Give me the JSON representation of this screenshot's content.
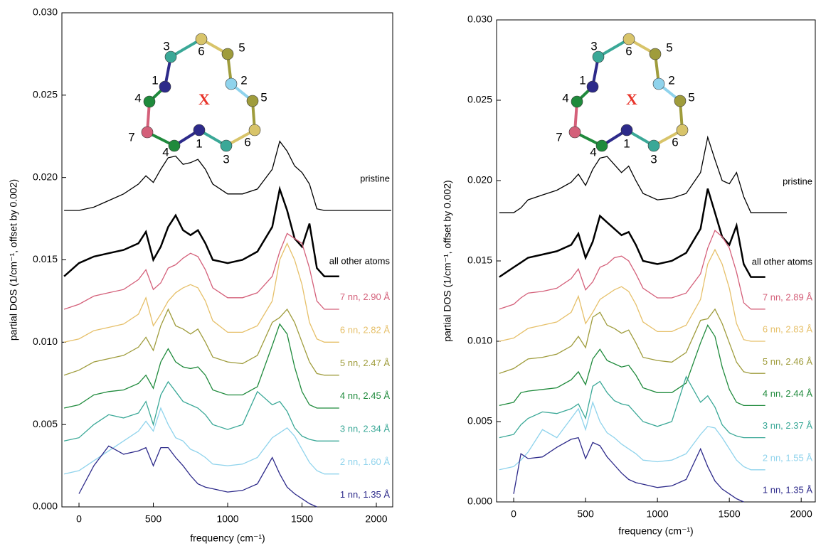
{
  "chart_data": [
    {
      "type": "line",
      "xlabel": "frequency (cm⁻¹)",
      "ylabel": "partial DOS (1/cm⁻¹, offset by 0.002)",
      "xlim": [
        -115,
        2110
      ],
      "ylim": [
        0,
        0.03
      ],
      "xticks": [
        0,
        500,
        1000,
        1500,
        2000
      ],
      "yticks": [
        {
          "value": 0,
          "label": "0.000"
        },
        {
          "value": 0.005,
          "label": "0.005"
        },
        {
          "value": 0.01,
          "label": "0.010"
        },
        {
          "value": 0.015,
          "label": "0.015"
        },
        {
          "value": 0.02,
          "label": "0.020"
        },
        {
          "value": 0.025,
          "label": "0.025"
        },
        {
          "value": 0.03,
          "label": "0.030"
        }
      ],
      "inset_labels": [
        "6",
        "5",
        "3",
        "2",
        "1",
        "5",
        "4",
        "6",
        "7",
        "1",
        "4",
        "3"
      ],
      "inset_center": "X",
      "x": [
        -100,
        0,
        100,
        200,
        300,
        400,
        450,
        500,
        550,
        600,
        650,
        700,
        750,
        800,
        850,
        900,
        1000,
        1100,
        1200,
        1300,
        1350,
        1400,
        1450,
        1500,
        1550,
        1600,
        1650,
        1750,
        2100
      ],
      "series": [
        {
          "name": "pristine",
          "color": "#000000",
          "values": [
            0.018,
            0.018,
            0.0182,
            0.0186,
            0.019,
            0.0196,
            0.0201,
            0.0197,
            0.0205,
            0.0212,
            0.0213,
            0.0208,
            0.0209,
            0.0211,
            0.0205,
            0.0196,
            0.019,
            0.019,
            0.0193,
            0.0205,
            0.0222,
            0.0216,
            0.0207,
            0.0203,
            0.0196,
            0.0181,
            0.018,
            0.018,
            0.018
          ]
        },
        {
          "name": "all other atoms",
          "color": "#000000",
          "values": [
            0.014,
            0.0148,
            0.0152,
            0.0154,
            0.0156,
            0.016,
            0.0167,
            0.015,
            0.0158,
            0.017,
            0.0177,
            0.0168,
            0.0165,
            0.0168,
            0.016,
            0.015,
            0.0148,
            0.015,
            0.0155,
            0.017,
            0.0193,
            0.018,
            0.0163,
            0.0158,
            0.0172,
            0.0145,
            0.014,
            0.014,
            null
          ]
        },
        {
          "name": "7 nn, 2.90 Å",
          "color": "#d4607a",
          "values": [
            0.012,
            0.0123,
            0.0128,
            0.013,
            0.0132,
            0.0138,
            0.0144,
            0.0132,
            0.0136,
            0.0145,
            0.0147,
            0.0151,
            0.0154,
            0.0152,
            0.0144,
            0.0133,
            0.0127,
            0.0127,
            0.013,
            0.014,
            0.0155,
            0.0166,
            0.0163,
            0.016,
            0.0145,
            0.0125,
            0.012,
            0.012,
            null
          ]
        },
        {
          "name": "6 nn, 2.82 Å",
          "color": "#e6c06a",
          "values": [
            0.01,
            0.0102,
            0.0107,
            0.0109,
            0.0111,
            0.0117,
            0.0127,
            0.011,
            0.0117,
            0.0125,
            0.013,
            0.0133,
            0.0135,
            0.0133,
            0.0125,
            0.0113,
            0.0106,
            0.0106,
            0.011,
            0.0125,
            0.015,
            0.016,
            0.015,
            0.0135,
            0.0112,
            0.0102,
            0.01,
            0.01,
            null
          ]
        },
        {
          "name": "5 nn, 2.47 Å",
          "color": "#9f9c3c",
          "values": [
            0.008,
            0.0083,
            0.0088,
            0.009,
            0.0092,
            0.0097,
            0.0103,
            0.0095,
            0.011,
            0.012,
            0.011,
            0.0108,
            0.0105,
            0.0108,
            0.01,
            0.0091,
            0.0088,
            0.0087,
            0.0092,
            0.0112,
            0.0115,
            0.012,
            0.0112,
            0.01,
            0.0088,
            0.0081,
            0.008,
            0.008,
            null
          ]
        },
        {
          "name": "4 nn, 2.45 Å",
          "color": "#1f8a3c",
          "values": [
            0.006,
            0.0062,
            0.0068,
            0.007,
            0.0071,
            0.0075,
            0.008,
            0.0072,
            0.0088,
            0.0096,
            0.0088,
            0.0085,
            0.0084,
            0.0085,
            0.008,
            0.0071,
            0.0068,
            0.0068,
            0.0073,
            0.0098,
            0.0111,
            0.0105,
            0.0085,
            0.007,
            0.0062,
            0.006,
            0.006,
            0.006,
            null
          ]
        },
        {
          "name": "3 nn, 2.34 Å",
          "color": "#3aa897",
          "values": [
            0.004,
            0.0042,
            0.005,
            0.0056,
            0.0054,
            0.0057,
            0.0064,
            0.005,
            0.0068,
            0.0076,
            0.007,
            0.0064,
            0.0062,
            0.006,
            0.0056,
            0.005,
            0.0047,
            0.005,
            0.007,
            0.0062,
            0.0064,
            0.0058,
            0.0048,
            0.0043,
            0.0041,
            0.004,
            0.004,
            0.004,
            null
          ]
        },
        {
          "name": "2 nn, 1.60 Å",
          "color": "#8fd3ec",
          "values": [
            0.002,
            0.0022,
            0.0028,
            0.0034,
            0.004,
            0.0046,
            0.0052,
            0.0046,
            0.006,
            0.005,
            0.0042,
            0.004,
            0.0035,
            0.0033,
            0.003,
            0.0026,
            0.0025,
            0.0026,
            0.003,
            0.0042,
            0.0045,
            0.0048,
            0.0043,
            0.0035,
            0.0027,
            0.0022,
            0.002,
            0.002,
            null
          ]
        },
        {
          "name": "1 nn, 1.35 Å",
          "color": "#2d2a8a",
          "values": [
            null,
            0.0008,
            0.0025,
            0.0037,
            0.0032,
            0.0034,
            0.0036,
            0.0025,
            0.0036,
            0.0036,
            0.003,
            0.0025,
            0.0019,
            0.0014,
            0.0012,
            0.0011,
            0.0009,
            0.001,
            0.0014,
            0.003,
            0.002,
            0.0012,
            0.0008,
            0.0005,
            0.0002,
            0,
            null,
            null,
            null
          ]
        }
      ]
    },
    {
      "type": "line",
      "xlabel": "frequency (cm⁻¹)",
      "ylabel": "partial DOS (1/cm⁻¹, offset by 0.002)",
      "xlim": [
        -119,
        2098
      ],
      "ylim": [
        0,
        0.03
      ],
      "xticks": [
        0,
        500,
        1000,
        1500,
        2000
      ],
      "yticks": [
        {
          "value": 0,
          "label": "0.000"
        },
        {
          "value": 0.005,
          "label": "0.005"
        },
        {
          "value": 0.01,
          "label": "0.010"
        },
        {
          "value": 0.015,
          "label": "0.015"
        },
        {
          "value": 0.02,
          "label": "0.020"
        },
        {
          "value": 0.025,
          "label": "0.025"
        },
        {
          "value": 0.03,
          "label": "0.030"
        }
      ],
      "inset_labels": [
        "6",
        "5",
        "3",
        "2",
        "1",
        "5",
        "4",
        "6",
        "7",
        "1",
        "4",
        "3"
      ],
      "inset_center": "X",
      "x": [
        -100,
        0,
        50,
        100,
        200,
        300,
        400,
        450,
        500,
        550,
        600,
        650,
        700,
        750,
        800,
        850,
        900,
        1000,
        1100,
        1200,
        1300,
        1350,
        1400,
        1450,
        1500,
        1550,
        1600,
        1650,
        1750,
        1900
      ],
      "series": [
        {
          "name": "pristine",
          "color": "#000000",
          "values": [
            0.018,
            0.018,
            0.0183,
            0.0188,
            0.0191,
            0.0194,
            0.0199,
            0.0204,
            0.0197,
            0.0207,
            0.0214,
            0.0215,
            0.021,
            0.0205,
            0.0209,
            0.02,
            0.0192,
            0.0188,
            0.0189,
            0.0192,
            0.0205,
            0.0227,
            0.0213,
            0.02,
            0.0198,
            0.0205,
            0.019,
            0.018,
            0.018,
            0.018
          ]
        },
        {
          "name": "all other atoms",
          "color": "#000000",
          "values": [
            0.014,
            0.0146,
            0.0149,
            0.0152,
            0.0154,
            0.0156,
            0.016,
            0.0167,
            0.0152,
            0.0162,
            0.0178,
            0.0174,
            0.017,
            0.0166,
            0.0168,
            0.016,
            0.015,
            0.0148,
            0.015,
            0.0155,
            0.017,
            0.0195,
            0.018,
            0.0165,
            0.016,
            0.0172,
            0.0148,
            0.014,
            0.014,
            null
          ]
        },
        {
          "name": "7 nn, 2.89 Å",
          "color": "#d4607a",
          "values": [
            0.012,
            0.0123,
            0.0127,
            0.013,
            0.0131,
            0.0133,
            0.0139,
            0.0145,
            0.0132,
            0.0137,
            0.0146,
            0.0148,
            0.0152,
            0.0153,
            0.015,
            0.0142,
            0.0133,
            0.0127,
            0.0127,
            0.013,
            0.0142,
            0.0158,
            0.0169,
            0.0165,
            0.0158,
            0.0143,
            0.0124,
            0.012,
            0.012,
            null
          ]
        },
        {
          "name": "6 nn, 2.83 Å",
          "color": "#e6c06a",
          "values": [
            0.01,
            0.0102,
            0.0105,
            0.0108,
            0.011,
            0.0112,
            0.0118,
            0.0128,
            0.0111,
            0.0118,
            0.0126,
            0.0129,
            0.0132,
            0.0134,
            0.0131,
            0.0123,
            0.0112,
            0.0106,
            0.0106,
            0.011,
            0.0126,
            0.0148,
            0.0157,
            0.0148,
            0.0133,
            0.0111,
            0.0101,
            0.01,
            0.01,
            null
          ]
        },
        {
          "name": "5 nn, 2.46 Å",
          "color": "#9f9c3c",
          "values": [
            0.008,
            0.0083,
            0.0086,
            0.0089,
            0.009,
            0.0092,
            0.0097,
            0.0103,
            0.0096,
            0.0115,
            0.0118,
            0.011,
            0.0108,
            0.0105,
            0.0107,
            0.0099,
            0.009,
            0.0088,
            0.0087,
            0.0093,
            0.0113,
            0.0114,
            0.012,
            0.0111,
            0.0099,
            0.0087,
            0.0081,
            0.008,
            0.008,
            null
          ]
        },
        {
          "name": "4 nn, 2.44 Å",
          "color": "#1f8a3c",
          "values": [
            0.006,
            0.0062,
            0.0068,
            0.0069,
            0.007,
            0.0071,
            0.0076,
            0.0081,
            0.0073,
            0.0089,
            0.0095,
            0.0088,
            0.0086,
            0.0084,
            0.0085,
            0.0079,
            0.0071,
            0.0068,
            0.0068,
            0.0074,
            0.0099,
            0.011,
            0.0103,
            0.0084,
            0.007,
            0.0062,
            0.006,
            0.006,
            0.006,
            null
          ]
        },
        {
          "name": "3 nn, 2.37 Å",
          "color": "#3aa897",
          "values": [
            0.004,
            0.0042,
            0.0048,
            0.0052,
            0.0056,
            0.0055,
            0.0058,
            0.0061,
            0.0052,
            0.0072,
            0.0075,
            0.0068,
            0.0063,
            0.0061,
            0.006,
            0.0055,
            0.005,
            0.0047,
            0.005,
            0.0078,
            0.0062,
            0.0066,
            0.0059,
            0.0048,
            0.0043,
            0.0041,
            0.004,
            0.004,
            0.004,
            null
          ]
        },
        {
          "name": "2 nn, 1.55 Å",
          "color": "#8fd3ec",
          "values": [
            0.002,
            0.0022,
            0.0026,
            0.0031,
            0.0045,
            0.004,
            0.0052,
            0.0058,
            0.0045,
            0.0062,
            0.005,
            0.0043,
            0.004,
            0.0036,
            0.0033,
            0.003,
            0.0026,
            0.0025,
            0.0026,
            0.003,
            0.0042,
            0.0047,
            0.0046,
            0.004,
            0.0033,
            0.0026,
            0.0022,
            0.002,
            0.002,
            null
          ]
        },
        {
          "name": "1 nn, 1.35 Å",
          "color": "#2d2a8a",
          "values": [
            null,
            0.0005,
            0.003,
            0.0027,
            0.0028,
            0.0034,
            0.0039,
            0.004,
            0.0027,
            0.0037,
            0.0035,
            0.0028,
            0.0023,
            0.0018,
            0.0014,
            0.0012,
            0.0011,
            0.0009,
            0.001,
            0.0014,
            0.0033,
            0.0022,
            0.0013,
            0.0008,
            0.0005,
            0.0002,
            0,
            null,
            null,
            null
          ]
        }
      ]
    }
  ]
}
